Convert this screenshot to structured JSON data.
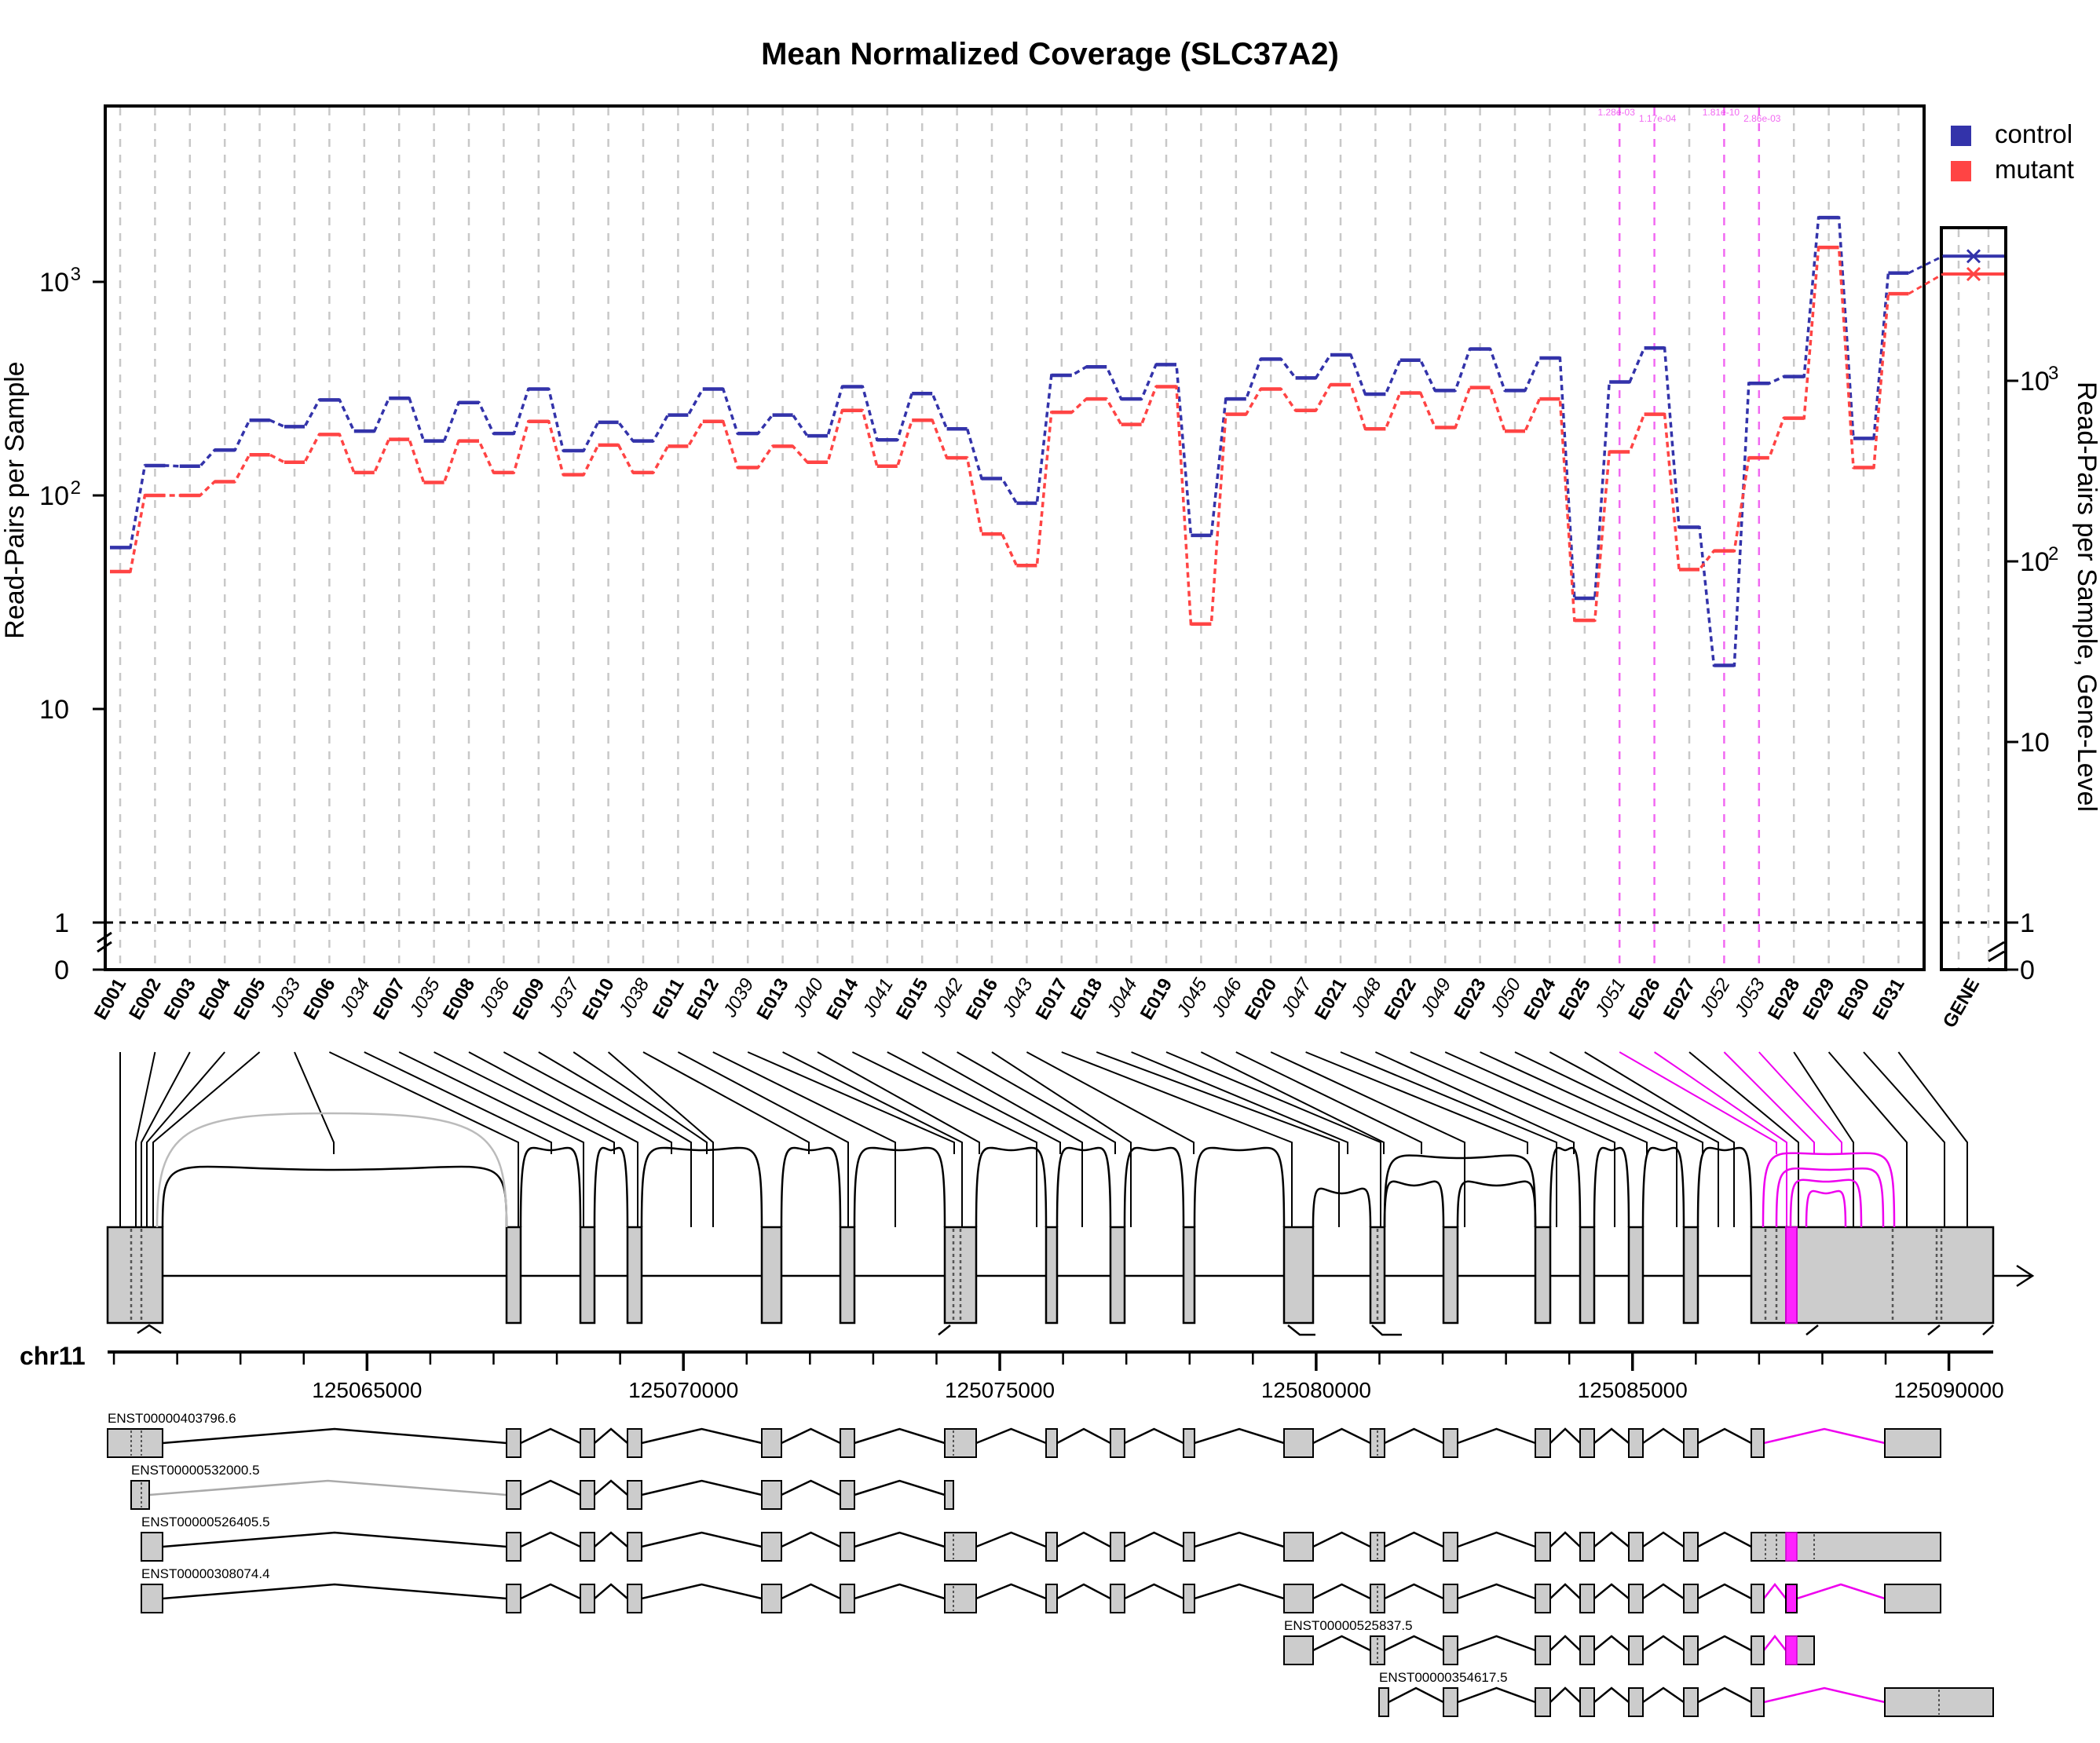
{
  "title": "Mean Normalized Coverage (SLC37A2)",
  "colors": {
    "control": "#3333aa",
    "mutant": "#ff4444",
    "sig": "#ee44ee",
    "box": "#cccccc",
    "grid": "#c8c8c8"
  },
  "chart_data": {
    "type": "line",
    "scale": "log",
    "ylabel": "Read-Pairs per Sample",
    "ylabel2": "Read-Pairs per Sample, Gene-Level",
    "ylim": [
      0,
      2600
    ],
    "yticks": [
      {
        "v": 0,
        "t": "0"
      },
      {
        "v": 1,
        "t": "1"
      },
      {
        "v": 10,
        "t": "10"
      },
      {
        "v": 100,
        "t": "10",
        "sup": "2"
      },
      {
        "v": 1000,
        "t": "10",
        "sup": "3"
      }
    ],
    "yticks2": [
      {
        "v": 0,
        "t": "0"
      },
      {
        "v": 1,
        "t": "1"
      },
      {
        "v": 10,
        "t": "10"
      },
      {
        "v": 100,
        "t": "10",
        "sup": "2"
      },
      {
        "v": 1000,
        "t": "10",
        "sup": "3"
      }
    ],
    "features": [
      "E001",
      "E002",
      "E003",
      "E004",
      "E005",
      "J033",
      "E006",
      "J034",
      "E007",
      "J035",
      "E008",
      "J036",
      "E009",
      "J037",
      "E010",
      "J038",
      "E011",
      "E012",
      "J039",
      "E013",
      "J040",
      "E014",
      "J041",
      "E015",
      "J042",
      "E016",
      "J043",
      "E017",
      "E018",
      "J044",
      "E019",
      "J045",
      "J046",
      "E020",
      "J047",
      "E021",
      "J048",
      "E022",
      "J049",
      "E023",
      "J050",
      "E024",
      "E025",
      "J051",
      "E026",
      "E027",
      "J052",
      "J053",
      "E028",
      "E029",
      "E030",
      "E031"
    ],
    "series": [
      {
        "name": "control",
        "values": [
          57,
          138,
          137,
          163,
          225,
          210,
          280,
          200,
          285,
          180,
          272,
          195,
          315,
          162,
          220,
          180,
          238,
          315,
          195,
          238,
          190,
          323,
          182,
          300,
          205,
          120,
          92,
          365,
          400,
          283,
          410,
          65,
          283,
          435,
          355,
          455,
          298,
          430,
          310,
          485,
          310,
          440,
          33,
          340,
          490,
          71,
          16,
          335,
          360,
          2000,
          185,
          1100
        ]
      },
      {
        "name": "mutant",
        "values": [
          44,
          100,
          100,
          116,
          155,
          143,
          193,
          128,
          183,
          115,
          180,
          128,
          222,
          125,
          172,
          128,
          170,
          222,
          135,
          170,
          143,
          250,
          137,
          225,
          150,
          66,
          47,
          245,
          283,
          215,
          323,
          25,
          240,
          315,
          250,
          330,
          205,
          302,
          208,
          320,
          200,
          283,
          26,
          160,
          240,
          45,
          55,
          150,
          230,
          1450,
          135,
          880
        ]
      }
    ],
    "gene": {
      "label": "GENE",
      "control": 4900,
      "mutant": 3900,
      "ylim": [
        0,
        9000
      ]
    },
    "sig_labels": [
      {
        "f": "J051",
        "t": "1.28e-03"
      },
      {
        "f": "E026",
        "t": "1.17e-04"
      },
      {
        "f": "J052",
        "t": "1.81e-10"
      },
      {
        "f": "J053",
        "t": "2.86e-03"
      }
    ],
    "chrom": "chr11",
    "coord_ticks": [
      "125065000",
      "125070000",
      "125075000",
      "125080000",
      "125085000",
      "125090000"
    ],
    "coord_tick_values": [
      125065000,
      125070000,
      125075000,
      125080000,
      125085000,
      125090000
    ],
    "coord_range": [
      125060900,
      125090700
    ],
    "transcripts": [
      {
        "id": "ENST00000403796.6"
      },
      {
        "id": "ENST00000532000.5"
      },
      {
        "id": "ENST00000526405.5"
      },
      {
        "id": "ENST00000308074.4"
      },
      {
        "id": "ENST00000525837.5"
      },
      {
        "id": "ENST00000354617.5"
      }
    ],
    "legend": [
      {
        "label": "control"
      },
      {
        "label": "mutant"
      }
    ],
    "legend_position": "top-right"
  }
}
